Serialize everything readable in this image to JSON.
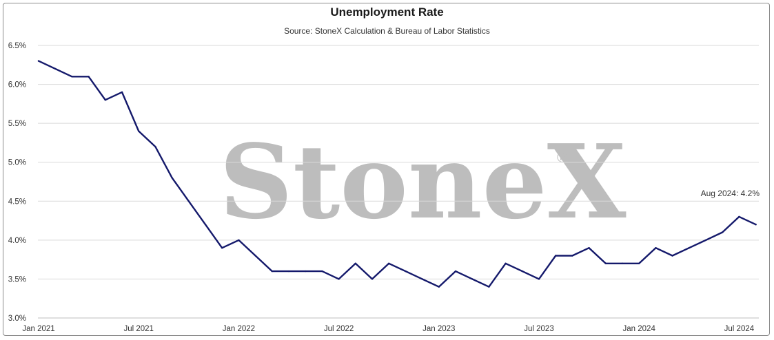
{
  "chart_data": {
    "type": "line",
    "title": "Unemployment Rate",
    "subtitle": "Source: StoneX Calculation & Bureau of Labor Statistics",
    "watermark": "StoneX",
    "watermark_mark": "®",
    "xlabel": "",
    "ylabel": "",
    "ylim": [
      3.0,
      6.5
    ],
    "y_ticks": [
      "3.0%",
      "3.5%",
      "4.0%",
      "4.5%",
      "5.0%",
      "5.5%",
      "6.0%",
      "6.5%"
    ],
    "x_ticks": [
      "Jan 2021",
      "Jul 2021",
      "Jan 2022",
      "Jul 2022",
      "Jan 2023",
      "Jul 2023",
      "Jan 2024",
      "Jul 2024"
    ],
    "grid": true,
    "line_color": "#14196b",
    "x": [
      "2021-01",
      "2021-02",
      "2021-03",
      "2021-04",
      "2021-05",
      "2021-06",
      "2021-07",
      "2021-08",
      "2021-09",
      "2021-10",
      "2021-11",
      "2021-12",
      "2022-01",
      "2022-02",
      "2022-03",
      "2022-04",
      "2022-05",
      "2022-06",
      "2022-07",
      "2022-08",
      "2022-09",
      "2022-10",
      "2022-11",
      "2022-12",
      "2023-01",
      "2023-02",
      "2023-03",
      "2023-04",
      "2023-05",
      "2023-06",
      "2023-07",
      "2023-08",
      "2023-09",
      "2023-10",
      "2023-11",
      "2023-12",
      "2024-01",
      "2024-02",
      "2024-03",
      "2024-04",
      "2024-05",
      "2024-06",
      "2024-07",
      "2024-08"
    ],
    "series": [
      {
        "values": [
          6.3,
          6.2,
          6.1,
          6.1,
          5.8,
          5.9,
          5.4,
          5.2,
          4.8,
          4.5,
          4.2,
          3.9,
          4.0,
          3.8,
          3.6,
          3.6,
          3.6,
          3.6,
          3.5,
          3.7,
          3.5,
          3.7,
          3.6,
          3.5,
          3.4,
          3.6,
          3.5,
          3.4,
          3.7,
          3.6,
          3.5,
          3.8,
          3.8,
          3.9,
          3.7,
          3.7,
          3.7,
          3.9,
          3.8,
          3.9,
          4.0,
          4.1,
          4.3,
          4.2
        ]
      }
    ],
    "annotations": [
      {
        "x": "2024-08",
        "text": "Aug 2024: 4.2%"
      }
    ]
  }
}
